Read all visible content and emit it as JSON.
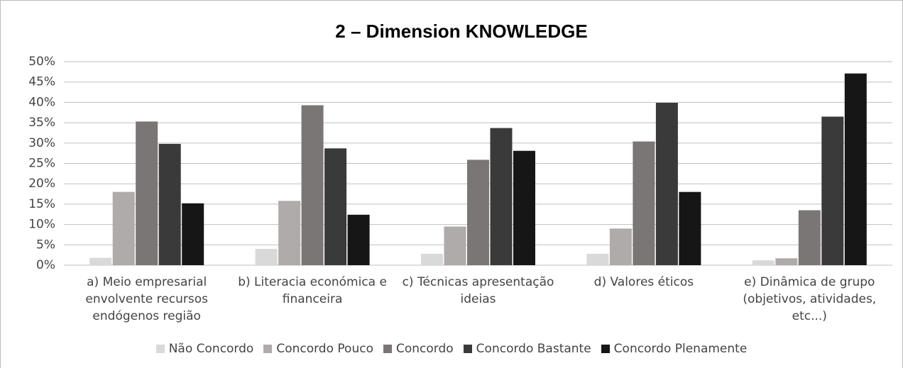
{
  "chart_data": {
    "type": "bar",
    "title": "2 – Dimension KNOWLEDGE",
    "categories": [
      "a) Meio empresarial envolvente recursos endógenos região",
      "b) Literacia económica e financeira",
      "c) Técnicas apresentação ideias",
      "d) Valores éticos",
      "e) Dinâmica de grupo (objetivos, atividades, etc...)"
    ],
    "series": [
      {
        "name": "Não Concordo",
        "color": "#d9d9d9",
        "values": [
          1.8,
          4.0,
          2.8,
          2.8,
          1.2
        ]
      },
      {
        "name": "Concordo Pouco",
        "color": "#b0abab",
        "values": [
          18.0,
          15.8,
          9.5,
          9.0,
          1.7
        ]
      },
      {
        "name": "Concordo",
        "color": "#7a7676",
        "values": [
          35.3,
          39.3,
          25.9,
          30.4,
          13.5
        ]
      },
      {
        "name": "Concordo Bastante",
        "color": "#3a3a3a",
        "values": [
          29.8,
          28.7,
          33.7,
          39.9,
          36.5
        ]
      },
      {
        "name": "Concordo Plenamente",
        "color": "#161616",
        "values": [
          15.2,
          12.4,
          28.1,
          18.0,
          47.1
        ]
      }
    ],
    "ylim": [
      0,
      50
    ],
    "yticks": [
      {
        "value": 0,
        "label": "0%"
      },
      {
        "value": 5,
        "label": "5%"
      },
      {
        "value": 10,
        "label": "10%"
      },
      {
        "value": 15,
        "label": "15%"
      },
      {
        "value": 20,
        "label": "20%"
      },
      {
        "value": 25,
        "label": "25%"
      },
      {
        "value": 30,
        "label": "30%"
      },
      {
        "value": 35,
        "label": "35%"
      },
      {
        "value": 40,
        "label": "40%"
      },
      {
        "value": 45,
        "label": "45%"
      },
      {
        "value": 50,
        "label": "50%"
      }
    ],
    "grid": true,
    "legend": "bottom"
  }
}
